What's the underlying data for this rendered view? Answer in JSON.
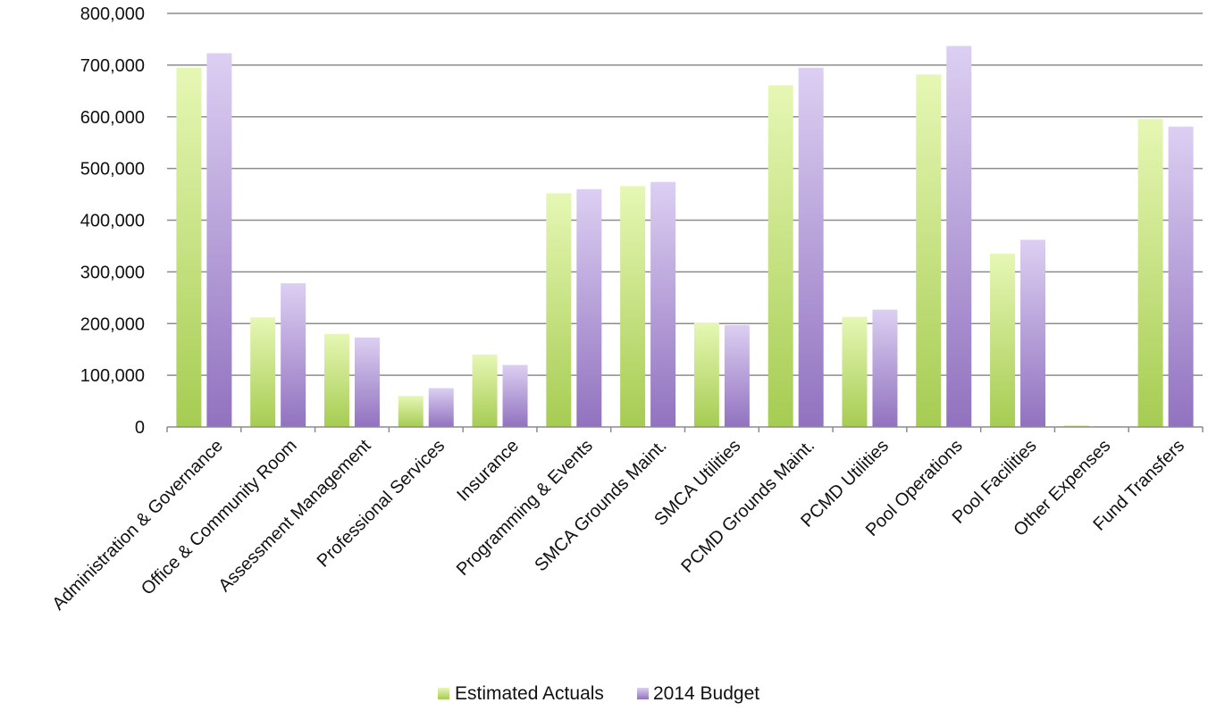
{
  "chart_data": {
    "type": "bar",
    "title": "",
    "xlabel": "",
    "ylabel": "",
    "ylim": [
      0,
      800000
    ],
    "yticks": [
      0,
      100000,
      200000,
      300000,
      400000,
      500000,
      600000,
      700000,
      800000
    ],
    "ytick_labels": [
      "0",
      "100,000",
      "200,000",
      "300,000",
      "400,000",
      "500,000",
      "600,000",
      "700,000",
      "800,000"
    ],
    "grid": true,
    "legend_position": "bottom-center",
    "categories": [
      "Administration & Governance",
      "Office & Community Room",
      "Assessment Management",
      "Professional Services",
      "Insurance",
      "Programming & Events",
      "SMCA Grounds Maint.",
      "SMCA Utilities",
      "PCMD Grounds Maint.",
      "PCMD Utilities",
      "Pool Operations",
      "Pool Facilities",
      "Other Expenses",
      "Fund Transfers"
    ],
    "series": [
      {
        "name": "Estimated Actuals",
        "color_light": "#e6f7b4",
        "color_dark": "#a6cc52",
        "values": [
          695000,
          212000,
          180000,
          60000,
          140000,
          452000,
          466000,
          202000,
          661000,
          213000,
          682000,
          335000,
          3000,
          596000
        ]
      },
      {
        "name": "2014 Budget",
        "color_light": "#dccff2",
        "color_dark": "#9172bf",
        "values": [
          723000,
          278000,
          173000,
          75000,
          120000,
          460000,
          474000,
          197000,
          695000,
          227000,
          737000,
          362000,
          1500,
          581000
        ]
      }
    ]
  }
}
